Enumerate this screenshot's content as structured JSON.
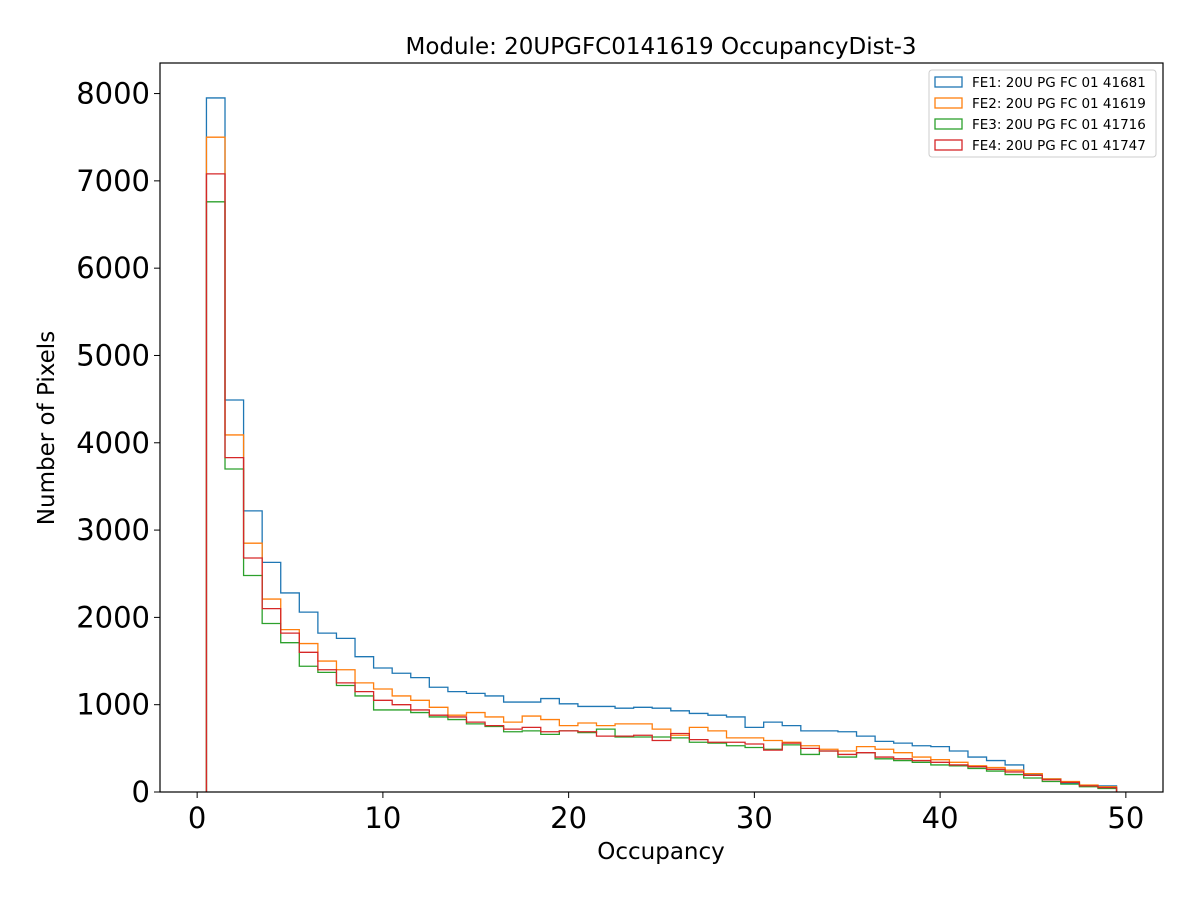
{
  "chart_data": {
    "type": "step-histogram",
    "title": "Module: 20UPGFC0141619 OccupancyDist-3",
    "xlabel": "Occupancy",
    "ylabel": "Number of Pixels",
    "xlim": [
      -2,
      52
    ],
    "ylim": [
      0,
      8350
    ],
    "xticks": [
      0,
      10,
      20,
      30,
      40,
      50
    ],
    "yticks": [
      0,
      1000,
      2000,
      3000,
      4000,
      5000,
      6000,
      7000,
      8000
    ],
    "bin_edges_start": 0.5,
    "bin_width": 1,
    "grid": false,
    "legend_position": "top-right",
    "series": [
      {
        "name": "FE1: 20U PG FC 01 41681",
        "color": "#1f77b4",
        "values": [
          7950,
          4490,
          3220,
          2630,
          2280,
          2060,
          1820,
          1760,
          1550,
          1420,
          1360,
          1310,
          1200,
          1150,
          1130,
          1100,
          1030,
          1030,
          1070,
          1010,
          980,
          980,
          960,
          970,
          960,
          930,
          900,
          880,
          860,
          740,
          800,
          760,
          700,
          700,
          690,
          640,
          580,
          560,
          530,
          520,
          470,
          400,
          360,
          310,
          200,
          150,
          100,
          75,
          70
        ]
      },
      {
        "name": "FE2: 20U PG FC 01 41619",
        "color": "#ff7f0e",
        "values": [
          7500,
          4090,
          2850,
          2210,
          1860,
          1700,
          1500,
          1400,
          1250,
          1180,
          1100,
          1050,
          970,
          880,
          910,
          860,
          800,
          870,
          830,
          760,
          790,
          760,
          780,
          780,
          720,
          650,
          740,
          700,
          620,
          620,
          590,
          570,
          530,
          490,
          470,
          520,
          490,
          450,
          400,
          370,
          340,
          300,
          280,
          250,
          210,
          150,
          120,
          80,
          60
        ]
      },
      {
        "name": "FE3: 20U PG FC 01 41716",
        "color": "#2ca02c",
        "values": [
          6760,
          3700,
          2480,
          1930,
          1710,
          1440,
          1370,
          1220,
          1100,
          940,
          940,
          910,
          860,
          830,
          780,
          750,
          690,
          700,
          660,
          700,
          680,
          720,
          630,
          630,
          630,
          620,
          570,
          560,
          530,
          510,
          490,
          540,
          430,
          470,
          400,
          450,
          380,
          360,
          340,
          310,
          300,
          270,
          240,
          200,
          160,
          120,
          90,
          60,
          40
        ]
      },
      {
        "name": "FE4: 20U PG FC 01 41747",
        "color": "#d62728",
        "values": [
          7080,
          3830,
          2680,
          2100,
          1820,
          1600,
          1400,
          1250,
          1150,
          1050,
          1000,
          940,
          880,
          860,
          800,
          760,
          720,
          740,
          690,
          700,
          690,
          640,
          640,
          650,
          590,
          670,
          600,
          570,
          570,
          550,
          480,
          560,
          500,
          470,
          430,
          450,
          400,
          380,
          360,
          340,
          310,
          290,
          260,
          230,
          190,
          140,
          110,
          70,
          50
        ]
      }
    ]
  }
}
